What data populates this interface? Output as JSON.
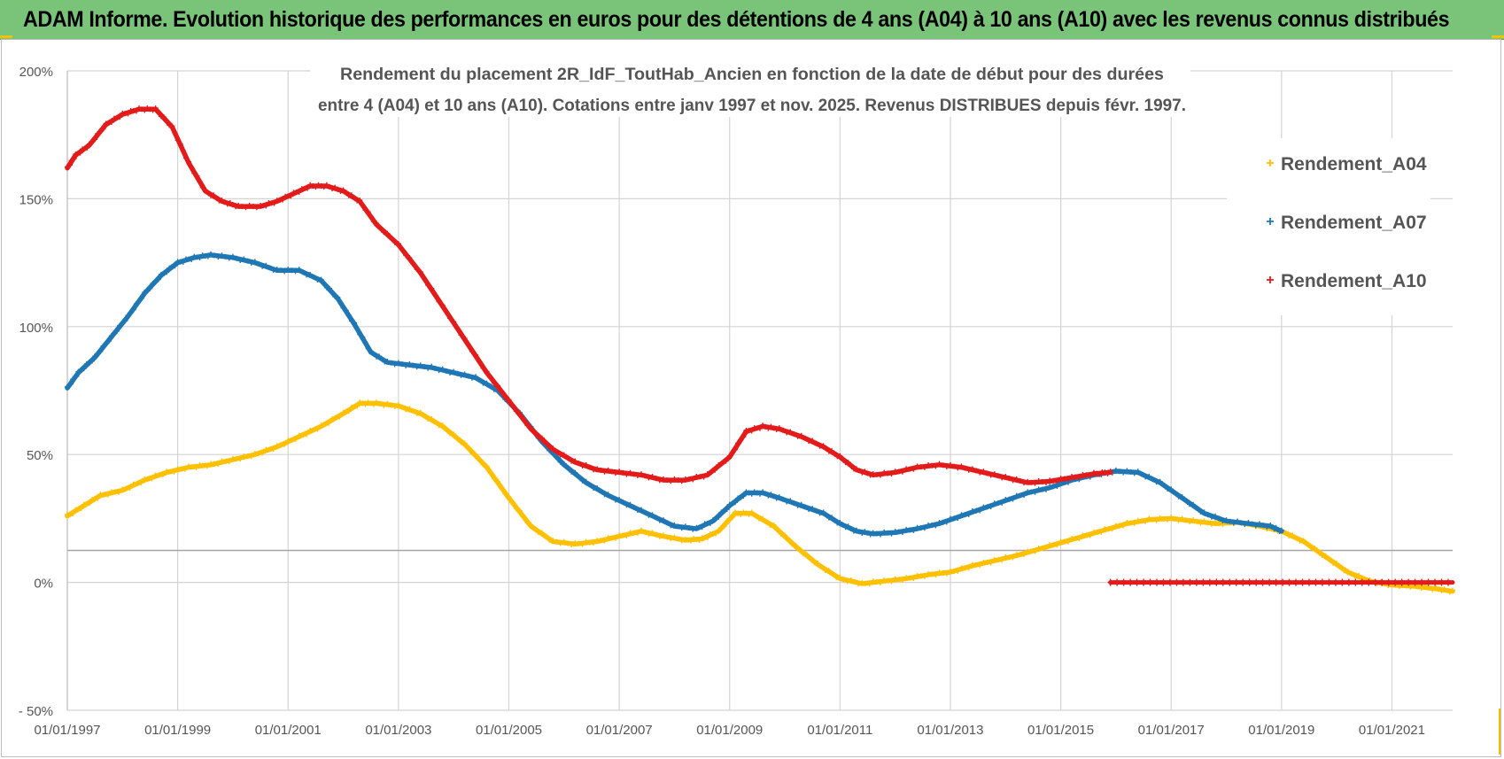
{
  "header": {
    "title": "ADAM Informe. Evolution historique des performances en euros pour des détentions de 4 ans (A04) à 10 ans (A10) avec les revenus connus distribués"
  },
  "chart_data": {
    "type": "scatter",
    "title_lines": [
      "Rendement du placement 2R_IdF_ToutHab_Ancien en fonction de la date de début pour des durées",
      "entre 4 (A04) et 10 ans (A10). Cotations entre janv 1997 et nov. 2025. Revenus DISTRIBUES depuis févr. 1997."
    ],
    "xlabel": "",
    "ylabel": "",
    "xlim": [
      1997.0,
      2022.1
    ],
    "ylim": [
      -50,
      200
    ],
    "y_ticks": [
      -50,
      0,
      50,
      100,
      150,
      200
    ],
    "y_tick_labels": [
      "- 50%",
      "0%",
      "50%",
      "100%",
      "150%",
      "200%"
    ],
    "x_ticks": [
      1997,
      1999,
      2001,
      2003,
      2005,
      2007,
      2009,
      2011,
      2013,
      2015,
      2017,
      2019,
      2021
    ],
    "x_tick_labels": [
      "01/01/1997",
      "01/01/1999",
      "01/01/2001",
      "01/01/2003",
      "01/01/2005",
      "01/01/2007",
      "01/01/2009",
      "01/01/2011",
      "01/01/2013",
      "01/01/2015",
      "01/01/2017",
      "01/01/2019",
      "01/01/2021"
    ],
    "reference_line_y": 12.5,
    "legend_position": "right",
    "series": [
      {
        "name": "Rendement_A04",
        "color": "#ffc000",
        "x": [
          1997.0,
          1997.3,
          1997.6,
          1998.0,
          1998.4,
          1998.8,
          1999.2,
          1999.6,
          2000.0,
          2000.4,
          2000.8,
          2001.2,
          2001.6,
          2002.0,
          2002.3,
          2002.6,
          2003.0,
          2003.4,
          2003.8,
          2004.2,
          2004.6,
          2005.0,
          2005.4,
          2005.8,
          2006.2,
          2006.6,
          2007.0,
          2007.4,
          2007.8,
          2008.2,
          2008.5,
          2008.8,
          2009.1,
          2009.4,
          2009.8,
          2010.2,
          2010.6,
          2011.0,
          2011.4,
          2011.8,
          2012.2,
          2012.6,
          2013.0,
          2013.4,
          2013.8,
          2014.2,
          2014.6,
          2015.0,
          2015.4,
          2015.8,
          2016.2,
          2016.6,
          2017.0,
          2017.4,
          2017.8,
          2018.2,
          2018.6,
          2019.0,
          2019.4,
          2019.8,
          2020.2,
          2020.6,
          2021.0,
          2021.4,
          2021.8,
          2022.1
        ],
        "y": [
          26,
          30,
          34,
          36,
          40,
          43,
          45,
          46,
          48,
          50,
          53,
          57,
          61,
          66,
          70,
          70,
          69,
          66,
          61,
          54,
          45,
          33,
          22,
          16,
          15,
          16,
          18,
          20,
          18,
          16.5,
          17,
          20,
          27,
          27,
          22,
          14,
          7,
          1.5,
          -0.5,
          0.5,
          1.5,
          3,
          4,
          6.5,
          8.5,
          10.5,
          13,
          15.5,
          18,
          20.5,
          23,
          24.5,
          25,
          24,
          23,
          23.5,
          22,
          20,
          16,
          10,
          4,
          0.5,
          -1,
          -1.5,
          -2.5,
          -3.5
        ]
      },
      {
        "name": "Rendement_A07",
        "color": "#1f77b4",
        "x": [
          1997.0,
          1997.2,
          1997.5,
          1997.8,
          1998.1,
          1998.4,
          1998.7,
          1999.0,
          1999.3,
          1999.6,
          2000.0,
          2000.4,
          2000.8,
          2001.2,
          2001.6,
          2001.9,
          2002.2,
          2002.5,
          2002.8,
          2003.2,
          2003.6,
          2004.0,
          2004.4,
          2004.8,
          2005.2,
          2005.6,
          2006.0,
          2006.4,
          2006.8,
          2007.2,
          2007.6,
          2008.0,
          2008.4,
          2008.7,
          2009.0,
          2009.3,
          2009.6,
          2009.9,
          2010.3,
          2010.7,
          2011.0,
          2011.3,
          2011.6,
          2012.0,
          2012.4,
          2012.8,
          2013.2,
          2013.6,
          2014.0,
          2014.4,
          2014.8,
          2015.2,
          2015.6,
          2016.0,
          2016.4,
          2016.8,
          2017.2,
          2017.6,
          2018.0,
          2018.4,
          2018.8,
          2019.0
        ],
        "y": [
          76,
          82,
          88,
          96,
          104,
          113,
          120,
          125,
          127,
          128,
          127,
          125,
          122,
          122,
          118,
          111,
          101,
          90,
          86,
          85,
          84,
          82,
          80,
          75,
          66,
          55,
          46,
          39,
          34,
          30,
          26,
          22,
          21,
          24,
          30,
          35,
          35,
          33,
          30,
          27,
          23,
          20,
          19,
          19.5,
          21,
          23,
          26,
          29,
          32,
          35,
          37,
          40,
          42,
          43.5,
          43,
          39,
          33,
          27,
          24,
          23,
          22,
          20
        ]
      },
      {
        "name": "Rendement_A10",
        "color": "#e31b1b",
        "x": [
          1997.0,
          1997.15,
          1997.4,
          1997.7,
          1998.0,
          1998.3,
          1998.6,
          1998.9,
          1999.2,
          1999.5,
          1999.8,
          2000.1,
          2000.5,
          2000.8,
          2001.1,
          2001.4,
          2001.7,
          2002.0,
          2002.3,
          2002.6,
          2003.0,
          2003.4,
          2003.8,
          2004.2,
          2004.6,
          2005.0,
          2005.4,
          2005.8,
          2006.2,
          2006.6,
          2007.0,
          2007.4,
          2007.8,
          2008.2,
          2008.6,
          2009.0,
          2009.3,
          2009.6,
          2009.9,
          2010.3,
          2010.7,
          2011.0,
          2011.3,
          2011.6,
          2012.0,
          2012.4,
          2012.8,
          2013.2,
          2013.6,
          2014.0,
          2014.4,
          2014.8,
          2015.2,
          2015.6,
          2015.9
        ],
        "y": [
          162,
          167,
          171,
          179,
          183,
          185,
          185,
          178,
          164,
          153,
          149,
          147,
          147,
          149,
          152,
          155,
          155,
          153,
          149,
          140,
          132,
          121,
          108,
          95,
          82,
          71,
          60,
          52,
          47,
          44,
          43,
          42,
          40,
          40,
          42,
          49,
          59,
          61,
          60,
          57,
          53,
          49,
          44,
          42,
          43,
          45,
          46,
          45,
          43,
          41,
          39,
          39.5,
          41,
          42.5,
          43
        ],
        "flat_segment": {
          "x": [
            2015.9,
            2022.1
          ],
          "y": 0
        }
      }
    ]
  }
}
